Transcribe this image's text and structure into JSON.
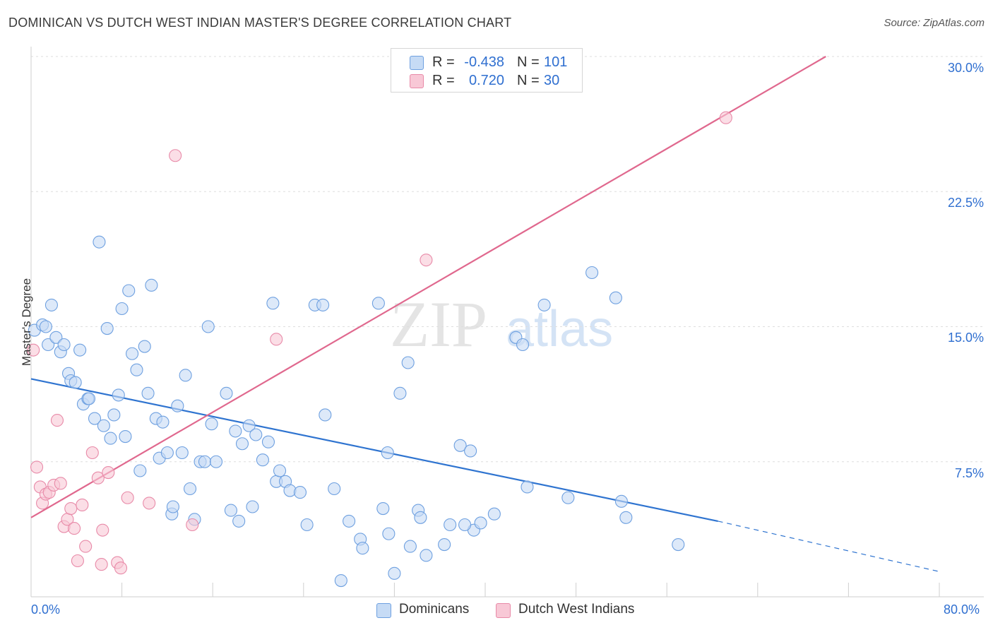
{
  "header": {
    "title": "DOMINICAN VS DUTCH WEST INDIAN MASTER'S DEGREE CORRELATION CHART",
    "source": "Source: ZipAtlas.com"
  },
  "legend_top": {
    "rows": [
      {
        "r_label": "R =",
        "r_value": "-0.438",
        "n_label": "N =",
        "n_value": "101",
        "fill": "#c6dbf5",
        "stroke": "#6ea0e0"
      },
      {
        "r_label": "R =",
        "r_value": "0.720",
        "n_label": "N =",
        "n_value": "30",
        "fill": "#f8c8d6",
        "stroke": "#e88aa8"
      }
    ]
  },
  "legend_bottom": [
    {
      "label": "Dominicans",
      "fill": "#c6dbf5",
      "stroke": "#6ea0e0"
    },
    {
      "label": "Dutch West Indians",
      "fill": "#f8c8d6",
      "stroke": "#e88aa8"
    }
  ],
  "watermark": {
    "part1": "ZIP",
    "part2": "atlas"
  },
  "chart_data": {
    "type": "scatter",
    "title": "DOMINICAN VS DUTCH WEST INDIAN MASTER'S DEGREE CORRELATION CHART",
    "ylabel": "Master's Degree",
    "xlabel": "",
    "xlim": [
      0,
      80
    ],
    "ylim": [
      0,
      30
    ],
    "x_tick_labels": [
      "0.0%",
      "80.0%"
    ],
    "y_tick_labels": [
      "7.5%",
      "15.0%",
      "22.5%",
      "30.0%"
    ],
    "y_ticks": [
      7.5,
      15.0,
      22.5,
      30.0
    ],
    "grid": "horizontal dashed",
    "legend_placement": "top-center",
    "series": [
      {
        "name": "Dominicans",
        "color": "#6ea0e0",
        "fill": "#c6dbf5",
        "line_color": "#2f74d0",
        "trend": {
          "x0": 0,
          "y0": 12.1,
          "x1": 60.5,
          "y1": 4.2,
          "dash_to_x": 80,
          "dash_to_y": 1.4
        },
        "points": [
          [
            0.3,
            14.8
          ],
          [
            1.0,
            15.1
          ],
          [
            1.3,
            15.0
          ],
          [
            1.5,
            14.0
          ],
          [
            1.8,
            16.2
          ],
          [
            2.2,
            14.4
          ],
          [
            2.6,
            13.6
          ],
          [
            2.9,
            14.0
          ],
          [
            3.3,
            12.4
          ],
          [
            3.5,
            12.0
          ],
          [
            3.9,
            11.9
          ],
          [
            4.3,
            13.7
          ],
          [
            4.6,
            10.7
          ],
          [
            5.0,
            11.0
          ],
          [
            5.1,
            11.0
          ],
          [
            5.6,
            9.9
          ],
          [
            6.0,
            19.7
          ],
          [
            6.4,
            9.5
          ],
          [
            6.7,
            14.9
          ],
          [
            7.0,
            8.8
          ],
          [
            7.3,
            10.1
          ],
          [
            7.7,
            11.2
          ],
          [
            8.0,
            16.0
          ],
          [
            8.3,
            8.9
          ],
          [
            8.6,
            17.0
          ],
          [
            8.9,
            13.5
          ],
          [
            9.3,
            12.6
          ],
          [
            9.6,
            7.0
          ],
          [
            10.0,
            13.9
          ],
          [
            10.3,
            11.3
          ],
          [
            10.6,
            17.3
          ],
          [
            11.0,
            9.9
          ],
          [
            11.3,
            7.7
          ],
          [
            11.6,
            9.7
          ],
          [
            12.0,
            8.0
          ],
          [
            12.4,
            4.6
          ],
          [
            12.5,
            5.0
          ],
          [
            12.9,
            10.6
          ],
          [
            13.3,
            8.0
          ],
          [
            13.6,
            12.3
          ],
          [
            14.0,
            6.0
          ],
          [
            14.4,
            4.3
          ],
          [
            14.9,
            7.5
          ],
          [
            15.3,
            7.5
          ],
          [
            15.6,
            15.0
          ],
          [
            15.9,
            9.6
          ],
          [
            16.3,
            7.5
          ],
          [
            17.2,
            11.3
          ],
          [
            17.6,
            4.8
          ],
          [
            18.0,
            9.2
          ],
          [
            18.3,
            4.2
          ],
          [
            18.6,
            8.5
          ],
          [
            19.2,
            9.5
          ],
          [
            19.5,
            5.0
          ],
          [
            19.8,
            9.0
          ],
          [
            20.4,
            7.6
          ],
          [
            20.9,
            8.6
          ],
          [
            21.3,
            16.3
          ],
          [
            21.6,
            6.4
          ],
          [
            21.9,
            7.0
          ],
          [
            22.4,
            6.4
          ],
          [
            22.8,
            5.9
          ],
          [
            23.7,
            5.8
          ],
          [
            24.3,
            4.0
          ],
          [
            25.0,
            16.2
          ],
          [
            25.7,
            16.2
          ],
          [
            25.9,
            10.1
          ],
          [
            26.7,
            6.0
          ],
          [
            27.3,
            0.9
          ],
          [
            28.0,
            4.2
          ],
          [
            29.0,
            3.2
          ],
          [
            29.2,
            2.7
          ],
          [
            30.6,
            16.3
          ],
          [
            31.0,
            4.9
          ],
          [
            31.4,
            8.0
          ],
          [
            31.5,
            3.5
          ],
          [
            32.0,
            1.3
          ],
          [
            32.5,
            11.3
          ],
          [
            33.2,
            13.0
          ],
          [
            33.4,
            2.8
          ],
          [
            34.1,
            4.8
          ],
          [
            34.3,
            4.4
          ],
          [
            34.8,
            2.3
          ],
          [
            36.4,
            2.9
          ],
          [
            36.9,
            4.0
          ],
          [
            37.8,
            8.4
          ],
          [
            38.7,
            8.1
          ],
          [
            39.0,
            3.7
          ],
          [
            39.6,
            4.1
          ],
          [
            40.8,
            4.6
          ],
          [
            42.7,
            14.4
          ],
          [
            43.3,
            14.0
          ],
          [
            43.7,
            6.1
          ],
          [
            45.2,
            16.2
          ],
          [
            47.3,
            5.5
          ],
          [
            49.4,
            18.0
          ],
          [
            51.5,
            16.6
          ],
          [
            52.0,
            5.3
          ],
          [
            52.4,
            4.4
          ],
          [
            57.0,
            2.9
          ],
          [
            38.2,
            4.0
          ]
        ]
      },
      {
        "name": "Dutch West Indians",
        "color": "#e88aa8",
        "fill": "#f8c8d6",
        "line_color": "#e0688e",
        "trend": {
          "x0": 0,
          "y0": 4.4,
          "x1": 70.0,
          "y1": 30.0
        },
        "points": [
          [
            0.2,
            13.7
          ],
          [
            0.5,
            7.2
          ],
          [
            0.8,
            6.1
          ],
          [
            1.0,
            5.2
          ],
          [
            1.3,
            5.7
          ],
          [
            1.6,
            5.8
          ],
          [
            2.0,
            6.2
          ],
          [
            2.3,
            9.8
          ],
          [
            2.6,
            6.3
          ],
          [
            2.9,
            3.9
          ],
          [
            3.2,
            4.3
          ],
          [
            3.5,
            4.9
          ],
          [
            3.8,
            3.8
          ],
          [
            4.1,
            2.0
          ],
          [
            4.5,
            5.1
          ],
          [
            4.8,
            2.8
          ],
          [
            5.4,
            8.0
          ],
          [
            5.9,
            6.6
          ],
          [
            6.2,
            1.8
          ],
          [
            6.3,
            3.7
          ],
          [
            6.8,
            6.9
          ],
          [
            7.6,
            1.9
          ],
          [
            7.9,
            1.6
          ],
          [
            8.5,
            5.5
          ],
          [
            10.4,
            5.2
          ],
          [
            12.7,
            24.5
          ],
          [
            14.2,
            4.0
          ],
          [
            21.6,
            14.3
          ],
          [
            34.8,
            18.7
          ],
          [
            61.2,
            26.6
          ]
        ]
      }
    ]
  }
}
